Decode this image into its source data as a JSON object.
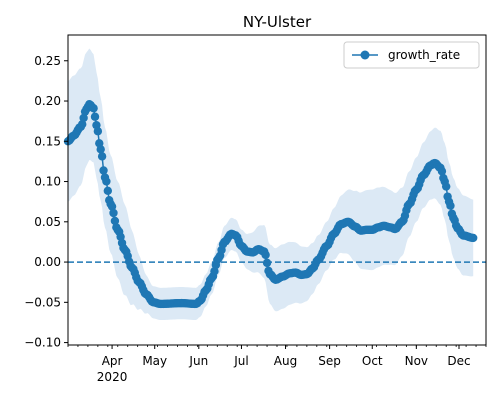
{
  "chart_data": {
    "type": "line",
    "title": "NY-Ulster",
    "xlabel": "",
    "ylabel": "",
    "legend": {
      "placement": "upper-right",
      "entries": [
        "growth_rate"
      ]
    },
    "ylim": [
      -0.103,
      0.282
    ],
    "xlim": [
      "2020-03-01",
      "2020-12-20"
    ],
    "y_ticks": [
      -0.1,
      -0.05,
      0.0,
      0.05,
      0.1,
      0.15,
      0.2,
      0.25
    ],
    "y_tick_labels": [
      "−0.10",
      "−0.05",
      "0.00",
      "0.05",
      "0.10",
      "0.15",
      "0.20",
      "0.25"
    ],
    "x_ticks": [
      {
        "date": "2020-04-01",
        "label": "Apr",
        "sublabel": "2020"
      },
      {
        "date": "2020-05-01",
        "label": "May",
        "sublabel": ""
      },
      {
        "date": "2020-06-01",
        "label": "Jun",
        "sublabel": ""
      },
      {
        "date": "2020-07-01",
        "label": "Jul",
        "sublabel": ""
      },
      {
        "date": "2020-08-01",
        "label": "Aug",
        "sublabel": ""
      },
      {
        "date": "2020-09-01",
        "label": "Sep",
        "sublabel": ""
      },
      {
        "date": "2020-10-01",
        "label": "Oct",
        "sublabel": ""
      },
      {
        "date": "2020-11-01",
        "label": "Nov",
        "sublabel": ""
      },
      {
        "date": "2020-12-01",
        "label": "Dec",
        "sublabel": ""
      }
    ],
    "reference_line": {
      "y": 0,
      "style": "dashed"
    },
    "series": [
      {
        "name": "growth_rate",
        "color": "#1f77b4",
        "band_color": "#dce9f5",
        "marker": "circle",
        "band_halfwidth": [
          [
            0,
            0.075
          ],
          [
            35,
            0.06
          ],
          [
            60,
            0.02
          ],
          [
            120,
            0.02
          ],
          [
            150,
            0.04
          ],
          [
            180,
            0.03
          ],
          [
            214,
            0.05
          ],
          [
            245,
            0.04
          ],
          [
            275,
            0.05
          ],
          [
            295,
            0.045
          ]
        ],
        "key_points": [
          [
            0,
            0.15
          ],
          [
            4,
            0.157
          ],
          [
            9,
            0.168
          ],
          [
            13,
            0.19
          ],
          [
            15,
            0.196
          ],
          [
            18,
            0.191
          ],
          [
            20,
            0.17
          ],
          [
            23,
            0.14
          ],
          [
            26,
            0.105
          ],
          [
            30,
            0.072
          ],
          [
            35,
            0.04
          ],
          [
            40,
            0.015
          ],
          [
            45,
            -0.007
          ],
          [
            50,
            -0.025
          ],
          [
            55,
            -0.04
          ],
          [
            60,
            -0.05
          ],
          [
            65,
            -0.052
          ],
          [
            80,
            -0.051
          ],
          [
            90,
            -0.052
          ],
          [
            93,
            -0.048
          ],
          [
            97,
            -0.035
          ],
          [
            101,
            -0.02
          ],
          [
            106,
            0.005
          ],
          [
            110,
            0.025
          ],
          [
            115,
            0.035
          ],
          [
            118,
            0.033
          ],
          [
            122,
            0.02
          ],
          [
            126,
            0.013
          ],
          [
            130,
            0.012
          ],
          [
            134,
            0.016
          ],
          [
            138,
            0.013
          ],
          [
            142,
            -0.015
          ],
          [
            146,
            -0.022
          ],
          [
            151,
            -0.018
          ],
          [
            156,
            -0.014
          ],
          [
            160,
            -0.013
          ],
          [
            164,
            -0.016
          ],
          [
            168,
            -0.015
          ],
          [
            172,
            -0.008
          ],
          [
            176,
            0.003
          ],
          [
            182,
            0.02
          ],
          [
            187,
            0.035
          ],
          [
            192,
            0.047
          ],
          [
            197,
            0.05
          ],
          [
            202,
            0.044
          ],
          [
            206,
            0.039
          ],
          [
            210,
            0.04
          ],
          [
            214,
            0.04
          ],
          [
            218,
            0.043
          ],
          [
            222,
            0.045
          ],
          [
            227,
            0.043
          ],
          [
            230,
            0.041
          ],
          [
            235,
            0.05
          ],
          [
            240,
            0.072
          ],
          [
            245,
            0.09
          ],
          [
            250,
            0.108
          ],
          [
            255,
            0.12
          ],
          [
            258,
            0.123
          ],
          [
            262,
            0.117
          ],
          [
            265,
            0.1
          ],
          [
            268,
            0.075
          ],
          [
            271,
            0.055
          ],
          [
            274,
            0.042
          ],
          [
            278,
            0.033
          ],
          [
            285,
            0.03
          ]
        ]
      }
    ]
  }
}
